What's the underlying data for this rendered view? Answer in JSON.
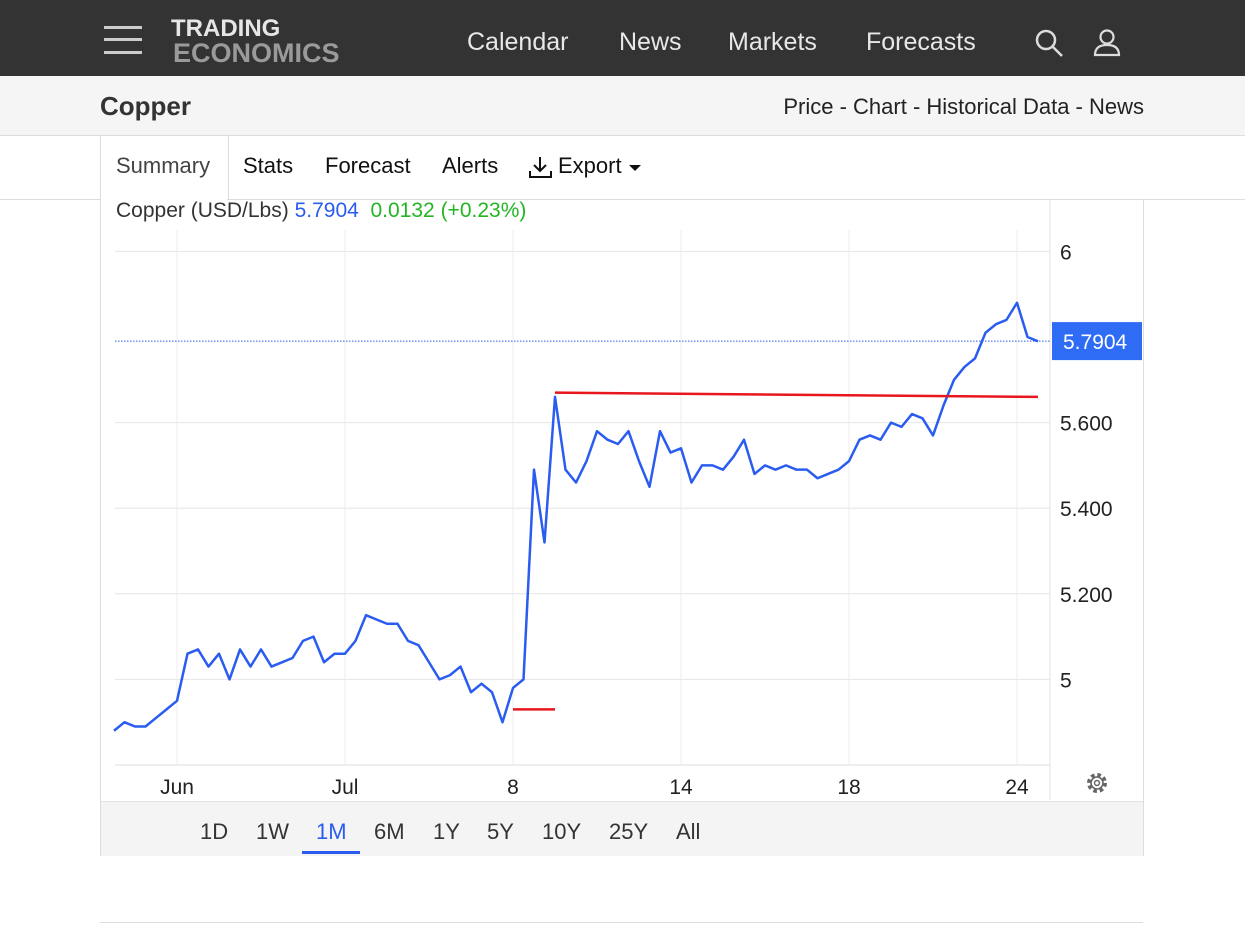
{
  "header": {
    "logo_top": "TRADING",
    "logo_bottom": "ECONOMICS",
    "nav": [
      "Calendar",
      "News",
      "Markets",
      "Forecasts"
    ]
  },
  "subheader": {
    "title": "Copper",
    "links": "Price - Chart - Historical Data - News"
  },
  "tabs": [
    "Summary",
    "Stats",
    "Forecast",
    "Alerts",
    "Export"
  ],
  "quote": {
    "name": "Copper (USD/Lbs)",
    "last": 5.7904,
    "change": "0.0132",
    "change_pct": "(+0.23%)"
  },
  "chart_data": {
    "type": "line",
    "categories": [
      null,
      null,
      null,
      null,
      null,
      null,
      "Jun",
      null,
      null,
      null,
      null,
      null,
      null,
      null,
      null,
      null,
      null,
      null,
      null,
      null,
      null,
      null,
      "Jul",
      null,
      null,
      null,
      null,
      null,
      null,
      null,
      null,
      null,
      null,
      null,
      null,
      null,
      null,
      null,
      "8",
      null,
      null,
      null,
      null,
      null,
      null,
      null,
      null,
      null,
      null,
      null,
      null,
      null,
      null,
      null,
      "14",
      null,
      null,
      null,
      null,
      null,
      null,
      null,
      null,
      null,
      null,
      null,
      null,
      null,
      null,
      null,
      "18",
      null,
      null,
      null,
      null,
      null,
      null,
      null,
      null,
      null,
      null,
      null,
      null,
      null,
      null,
      null,
      "24",
      null,
      null
    ],
    "series": [
      {
        "name": "Copper",
        "color": "#2a5cf0",
        "values": [
          4.88,
          4.9,
          4.89,
          4.89,
          4.91,
          4.93,
          4.95,
          5.06,
          5.07,
          5.03,
          5.06,
          5.0,
          5.07,
          5.03,
          5.07,
          5.03,
          5.04,
          5.05,
          5.09,
          5.1,
          5.04,
          5.06,
          5.06,
          5.09,
          5.15,
          5.14,
          5.13,
          5.13,
          5.09,
          5.08,
          5.04,
          5.0,
          5.01,
          5.03,
          4.97,
          4.99,
          4.97,
          4.9,
          4.98,
          5.0,
          5.49,
          5.32,
          5.66,
          5.49,
          5.46,
          5.51,
          5.58,
          5.56,
          5.55,
          5.58,
          5.51,
          5.45,
          5.58,
          5.53,
          5.54,
          5.46,
          5.5,
          5.5,
          5.49,
          5.52,
          5.56,
          5.48,
          5.5,
          5.49,
          5.5,
          5.49,
          5.49,
          5.47,
          5.48,
          5.49,
          5.51,
          5.56,
          5.57,
          5.56,
          5.6,
          5.59,
          5.62,
          5.61,
          5.57,
          5.64,
          5.7,
          5.73,
          5.75,
          5.81,
          5.83,
          5.84,
          5.88,
          5.8,
          5.79
        ]
      }
    ],
    "trendlines": [
      {
        "color": "#e8161d",
        "x": [
          42,
          88
        ],
        "values": [
          5.67,
          5.66
        ]
      },
      {
        "color": "#e8161d",
        "x": [
          38,
          42
        ],
        "values": [
          4.93,
          4.93
        ]
      }
    ],
    "ylim": [
      4.8,
      6.05
    ],
    "yticks": [
      5,
      {
        "value": 5.2,
        "label": "5.200"
      },
      {
        "value": 5.4,
        "label": "5.400"
      },
      {
        "value": 5.6,
        "label": "5.600"
      },
      6
    ],
    "grid": true
  },
  "ranges": [
    "1D",
    "1W",
    "1M",
    "6M",
    "1Y",
    "5Y",
    "10Y",
    "25Y",
    "All"
  ],
  "active_range": "1M"
}
